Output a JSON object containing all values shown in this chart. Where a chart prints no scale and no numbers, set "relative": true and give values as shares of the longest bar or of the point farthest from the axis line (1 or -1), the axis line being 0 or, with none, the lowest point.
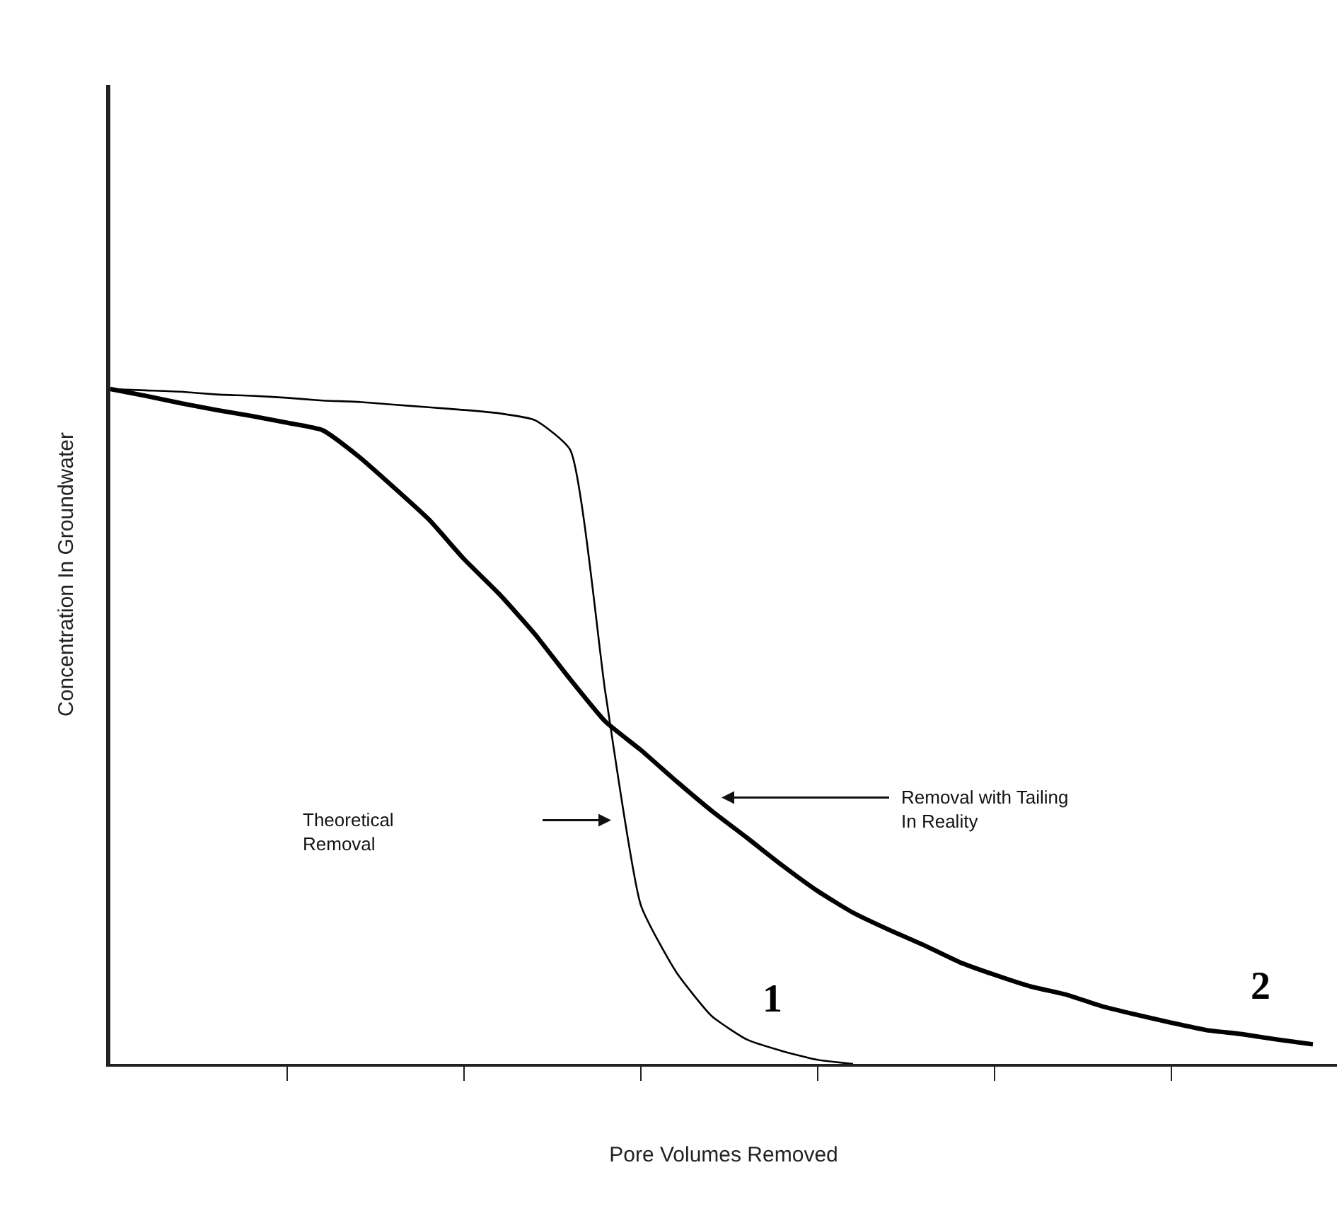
{
  "chart_data": {
    "type": "line",
    "relative": true,
    "xlabel": "Pore Volumes Removed",
    "ylabel": "Concentration In Groundwater",
    "categories": [
      null,
      null,
      null,
      null,
      null,
      null,
      null,
      null,
      null,
      null,
      null,
      null,
      null,
      null,
      null,
      null,
      null,
      null,
      null,
      null,
      null,
      null,
      null,
      null,
      null,
      null,
      null,
      null,
      null,
      null,
      null,
      null,
      null,
      null,
      null
    ],
    "series": [
      {
        "name": "1",
        "color": "#000000",
        "values": [
          1.0,
          0.998,
          0.996,
          0.992,
          0.99,
          0.987,
          0.983,
          0.981,
          0.977,
          0.973,
          0.969,
          0.964,
          0.954,
          0.91,
          0.549,
          0.235,
          0.136,
          0.071,
          0.036,
          0.019,
          0.006,
          0,
          null,
          null,
          null,
          null,
          null,
          null,
          null,
          null,
          null,
          null,
          null,
          null,
          null
        ]
      },
      {
        "name": "2",
        "color": "#000000",
        "values": [
          1.0,
          0.99,
          0.979,
          0.969,
          0.96,
          0.95,
          0.939,
          0.901,
          0.855,
          0.807,
          0.748,
          0.696,
          0.637,
          0.57,
          0.507,
          0.465,
          0.419,
          0.375,
          0.335,
          0.294,
          0.256,
          0.224,
          0.199,
          0.176,
          0.151,
          0.132,
          0.115,
          0.103,
          0.086,
          0.073,
          0.061,
          0.05,
          0.044,
          0.036,
          0.029
        ]
      }
    ],
    "annotations": [
      "Theoretical\nRemoval",
      "Removal with Tailing\nIn Reality"
    ],
    "legend": false,
    "marker": "none",
    "line_style": "solid"
  }
}
